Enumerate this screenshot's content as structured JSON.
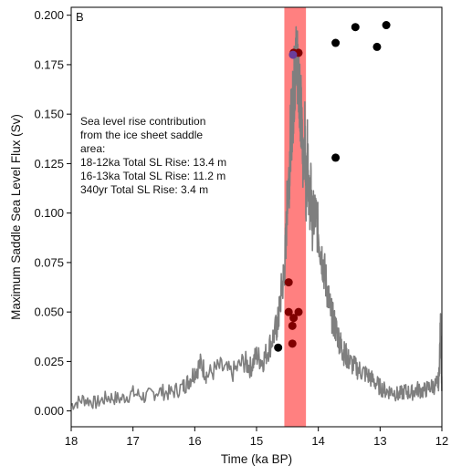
{
  "chart_data": {
    "type": "scatter",
    "panel_label": "B",
    "xlabel": "Time (ka BP)",
    "ylabel": "Maximum  Saddle Sea Level Flux (Sv)",
    "xlim": [
      18,
      12
    ],
    "ylim": [
      -0.008,
      0.204
    ],
    "x_ticks": [
      18,
      17,
      16,
      15,
      14,
      13,
      12
    ],
    "x_tick_labels": [
      "18",
      "17",
      "16",
      "15",
      "14",
      "13",
      "12"
    ],
    "y_ticks": [
      0.0,
      0.025,
      0.05,
      0.075,
      0.1,
      0.125,
      0.15,
      0.175,
      0.2
    ],
    "y_tick_labels": [
      "0.000",
      "0.025",
      "0.050",
      "0.075",
      "0.100",
      "0.125",
      "0.150",
      "0.175",
      "0.200"
    ],
    "grid": false,
    "highlight_band": {
      "x_range": [
        14.55,
        14.2
      ],
      "color": "#ff8080"
    },
    "annotation": [
      "Sea level rise contribution",
      "from the ice sheet saddle",
      "area:",
      "18-12ka  Total SL Rise: 13.4  m",
      "16-13ka  Total SL Rise: 11.2  m",
      "340yr  Total SL Rise: 3.4  m"
    ],
    "colors": {
      "line": "#7f7f7f",
      "black_points": "#000000",
      "dark_red_points": "#800000",
      "purple_point": "#6a3d9a"
    },
    "line_series": {
      "x": [
        18.0,
        17.8,
        17.6,
        17.4,
        17.2,
        17.0,
        16.8,
        16.6,
        16.4,
        16.2,
        16.1,
        16.0,
        15.9,
        15.8,
        15.6,
        15.4,
        15.2,
        15.1,
        15.0,
        14.9,
        14.8,
        14.7,
        14.65,
        14.6,
        14.55,
        14.52,
        14.5,
        14.47,
        14.45,
        14.42,
        14.4,
        14.38,
        14.35,
        14.33,
        14.3,
        14.28,
        14.25,
        14.22,
        14.2,
        14.17,
        14.15,
        14.12,
        14.1,
        14.05,
        14.0,
        13.95,
        13.9,
        13.85,
        13.8,
        13.75,
        13.7,
        13.65,
        13.6,
        13.55,
        13.5,
        13.4,
        13.3,
        13.2,
        13.1,
        13.0,
        12.9,
        12.8,
        12.7,
        12.6,
        12.5,
        12.4,
        12.3,
        12.2,
        12.1,
        12.05,
        12.02,
        12.0
      ],
      "y": [
        0.003,
        0.006,
        0.004,
        0.007,
        0.006,
        0.009,
        0.007,
        0.01,
        0.009,
        0.012,
        0.015,
        0.02,
        0.024,
        0.018,
        0.022,
        0.019,
        0.025,
        0.022,
        0.028,
        0.025,
        0.032,
        0.04,
        0.045,
        0.06,
        0.07,
        0.09,
        0.11,
        0.12,
        0.14,
        0.15,
        0.16,
        0.17,
        0.178,
        0.172,
        0.165,
        0.15,
        0.125,
        0.14,
        0.11,
        0.135,
        0.105,
        0.11,
        0.095,
        0.1,
        0.09,
        0.08,
        0.07,
        0.06,
        0.05,
        0.045,
        0.04,
        0.035,
        0.03,
        0.028,
        0.025,
        0.022,
        0.02,
        0.018,
        0.015,
        0.012,
        0.01,
        0.01,
        0.008,
        0.01,
        0.009,
        0.011,
        0.01,
        0.012,
        0.013,
        0.015,
        0.045,
        0.01
      ]
    },
    "scatter_series": [
      {
        "color": "black",
        "points": [
          {
            "x": 14.65,
            "y": 0.032
          },
          {
            "x": 13.72,
            "y": 0.186
          },
          {
            "x": 13.72,
            "y": 0.128
          },
          {
            "x": 13.4,
            "y": 0.194
          },
          {
            "x": 13.05,
            "y": 0.184
          },
          {
            "x": 12.9,
            "y": 0.195
          }
        ]
      },
      {
        "color": "dark-red",
        "points": [
          {
            "x": 14.4,
            "y": 0.181
          },
          {
            "x": 14.48,
            "y": 0.065
          },
          {
            "x": 14.48,
            "y": 0.05
          },
          {
            "x": 14.4,
            "y": 0.047
          },
          {
            "x": 14.42,
            "y": 0.043
          },
          {
            "x": 14.32,
            "y": 0.05
          },
          {
            "x": 14.42,
            "y": 0.034
          },
          {
            "x": 14.32,
            "y": 0.181
          }
        ]
      },
      {
        "color": "purple",
        "points": [
          {
            "x": 14.41,
            "y": 0.18
          }
        ]
      }
    ]
  }
}
